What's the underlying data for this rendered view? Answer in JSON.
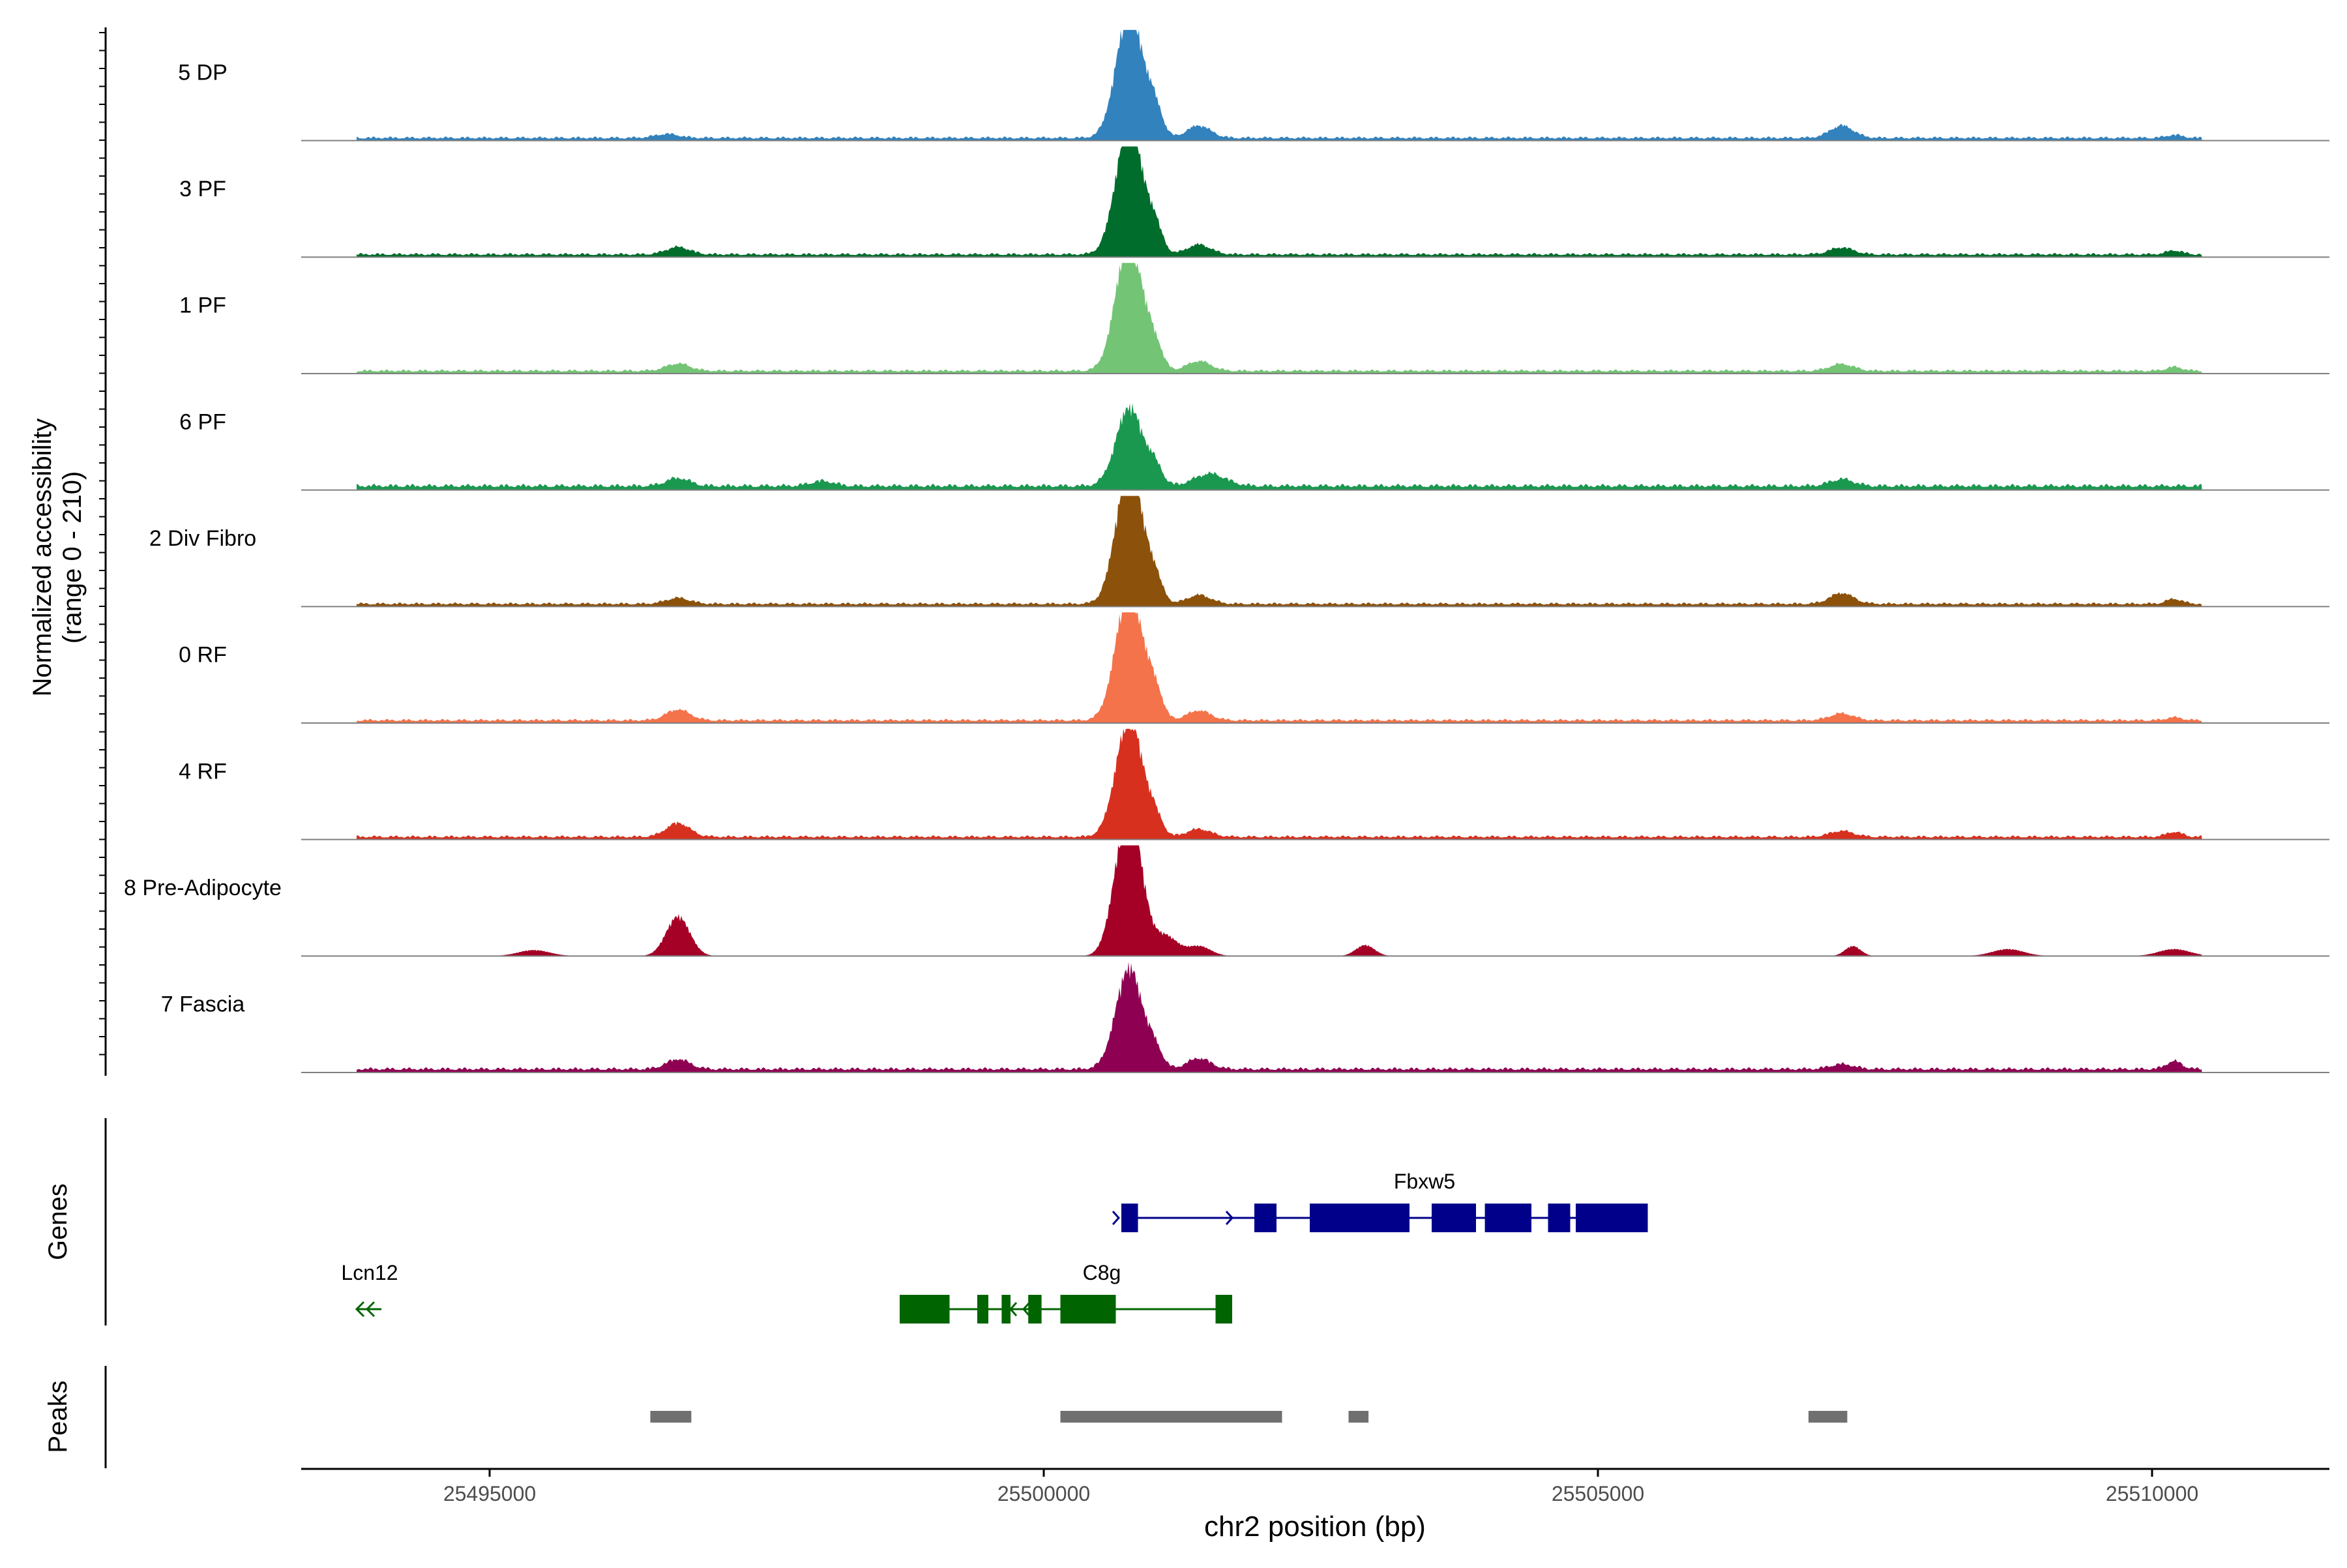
{
  "chart_data": {
    "type": "area",
    "region": "chr2",
    "ylabel_line1": "Normalized accessibility",
    "ylabel_line2": "(range 0 - 210)",
    "yrange": [
      0,
      210
    ],
    "xlabel": "chr2 position (bp)",
    "xlim": [
      25493300,
      25511600
    ],
    "xticks": [
      25495000,
      25500000,
      25505000,
      25510000
    ],
    "xtick_labels": [
      "25495000",
      "25500000",
      "25505000",
      "25510000"
    ],
    "tracks": [
      {
        "name": "5 DP",
        "color": "#3182bd",
        "baseline": 8,
        "peaks": [
          [
            25500700,
            85,
            150
          ],
          [
            25500800,
            200,
            150
          ],
          [
            25501000,
            60,
            100
          ],
          [
            25501400,
            25,
            150
          ],
          [
            25507200,
            25,
            150
          ],
          [
            25496600,
            8,
            150
          ],
          [
            25510200,
            6,
            100
          ]
        ]
      },
      {
        "name": "3 PF",
        "color": "#006d2c",
        "baseline": 8,
        "peaks": [
          [
            25500700,
            95,
            150
          ],
          [
            25500800,
            195,
            150
          ],
          [
            25501000,
            55,
            100
          ],
          [
            25501400,
            20,
            150
          ],
          [
            25496700,
            15,
            150
          ],
          [
            25507200,
            14,
            150
          ],
          [
            25510200,
            8,
            100
          ]
        ]
      },
      {
        "name": "1 PF",
        "color": "#74c476",
        "baseline": 8,
        "peaks": [
          [
            25500700,
            95,
            150
          ],
          [
            25500800,
            200,
            150
          ],
          [
            25501000,
            50,
            100
          ],
          [
            25501400,
            20,
            150
          ],
          [
            25496700,
            15,
            150
          ],
          [
            25507200,
            14,
            150
          ],
          [
            25510200,
            8,
            100
          ]
        ]
      },
      {
        "name": "6 PF",
        "color": "#1a9850",
        "baseline": 12,
        "peaks": [
          [
            25500700,
            55,
            150
          ],
          [
            25500800,
            120,
            150
          ],
          [
            25501000,
            40,
            100
          ],
          [
            25501500,
            25,
            200
          ],
          [
            25496700,
            16,
            150
          ],
          [
            25507200,
            14,
            150
          ],
          [
            25498000,
            10,
            150
          ]
        ]
      },
      {
        "name": "2 Div Fibro",
        "color": "#8c510a",
        "baseline": 8,
        "peaks": [
          [
            25500700,
            95,
            150
          ],
          [
            25500800,
            210,
            150
          ],
          [
            25501000,
            50,
            100
          ],
          [
            25501400,
            18,
            150
          ],
          [
            25496700,
            12,
            150
          ],
          [
            25507200,
            22,
            150
          ],
          [
            25510200,
            10,
            100
          ]
        ]
      },
      {
        "name": "0 RF",
        "color": "#f4734a",
        "baseline": 8,
        "peaks": [
          [
            25500700,
            95,
            150
          ],
          [
            25500800,
            200,
            150
          ],
          [
            25501000,
            60,
            100
          ],
          [
            25501400,
            20,
            150
          ],
          [
            25496700,
            22,
            150
          ],
          [
            25507200,
            14,
            150
          ],
          [
            25510200,
            6,
            100
          ]
        ]
      },
      {
        "name": "4 RF",
        "color": "#d7301f",
        "baseline": 8,
        "peaks": [
          [
            25500700,
            85,
            150
          ],
          [
            25500800,
            180,
            150
          ],
          [
            25501000,
            40,
            100
          ],
          [
            25501400,
            16,
            150
          ],
          [
            25496700,
            28,
            150
          ],
          [
            25507200,
            12,
            150
          ],
          [
            25510200,
            10,
            100
          ]
        ]
      },
      {
        "name": "8 Pre-Adipocyte",
        "color": "#a50026",
        "baseline": 0,
        "peaks": [
          [
            25500700,
            120,
            150
          ],
          [
            25500800,
            210,
            150
          ],
          [
            25501100,
            40,
            150
          ],
          [
            25501400,
            20,
            150
          ],
          [
            25496700,
            80,
            150
          ],
          [
            25495400,
            12,
            200
          ],
          [
            25502900,
            22,
            120
          ],
          [
            25507300,
            20,
            100
          ],
          [
            25508700,
            14,
            200
          ],
          [
            25510200,
            14,
            200
          ]
        ]
      },
      {
        "name": "7 Fascia",
        "color": "#8e0152",
        "baseline": 10,
        "peaks": [
          [
            25500700,
            75,
            150
          ],
          [
            25500800,
            150,
            150
          ],
          [
            25501000,
            40,
            100
          ],
          [
            25501400,
            22,
            150
          ],
          [
            25496700,
            20,
            150
          ],
          [
            25507200,
            10,
            150
          ],
          [
            25510200,
            16,
            100
          ]
        ]
      }
    ],
    "genes_axis_label": "Genes",
    "genes": [
      {
        "name": "Fbxw5",
        "color": "#00008b",
        "strand": "+",
        "start": 25500700,
        "end": 25505450,
        "exons": [
          [
            25500700,
            25500850
          ],
          [
            25501900,
            25502100
          ],
          [
            25502400,
            25503300
          ],
          [
            25503500,
            25503900
          ],
          [
            25503980,
            25504400
          ],
          [
            25504550,
            25504750
          ],
          [
            25504800,
            25505450
          ]
        ]
      },
      {
        "name": "C8g",
        "color": "#006400",
        "strand": "-",
        "start": 25498700,
        "end": 25501700,
        "exons": [
          [
            25498700,
            25499150
          ],
          [
            25499400,
            25499500
          ],
          [
            25499620,
            25499700
          ],
          [
            25499860,
            25499980
          ],
          [
            25500150,
            25500650
          ],
          [
            25501550,
            25501700
          ]
        ]
      },
      {
        "name": "Lcn12",
        "color": "#006400",
        "strand": "-",
        "start": 25493800,
        "end": 25494000,
        "exons": []
      }
    ],
    "peaks_axis_label": "Peaks",
    "peak_color": "#707070",
    "peak_regions": [
      [
        25496450,
        25496820
      ],
      [
        25500150,
        25502150
      ],
      [
        25502750,
        25502930
      ],
      [
        25506900,
        25507250
      ]
    ]
  }
}
